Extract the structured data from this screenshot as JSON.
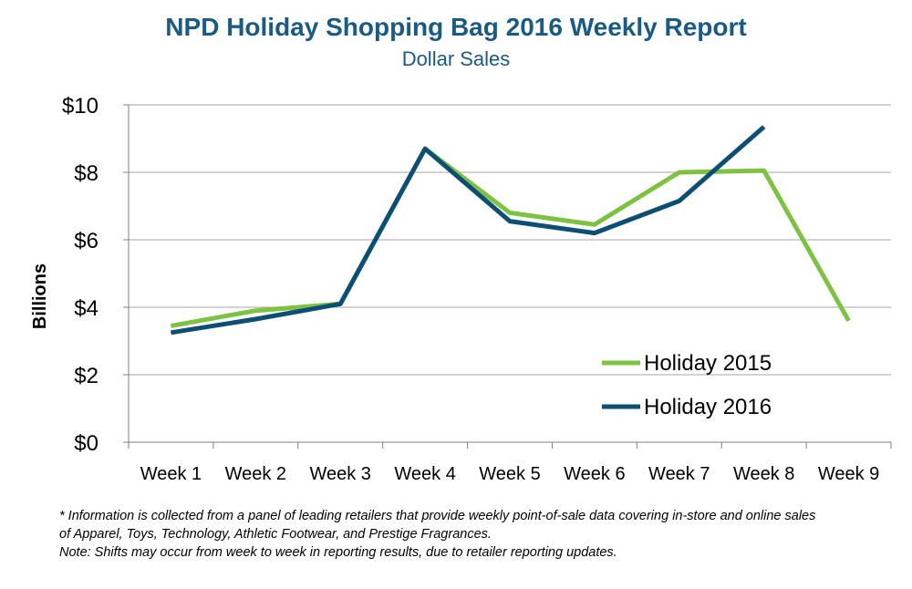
{
  "chart_data": {
    "type": "line",
    "title": "NPD Holiday Shopping Bag 2016 Weekly Report",
    "subtitle": "Dollar Sales",
    "ylabel": "Billions",
    "xlabel": "",
    "categories": [
      "Week 1",
      "Week 2",
      "Week 3",
      "Week 4",
      "Week 5",
      "Week 6",
      "Week 7",
      "Week 8",
      "Week 9"
    ],
    "ylim": [
      0,
      10
    ],
    "yticks": [
      0,
      2,
      4,
      6,
      8,
      10
    ],
    "ytick_labels": [
      "$0",
      "$2",
      "$4",
      "$6",
      "$8",
      "$10"
    ],
    "grid": true,
    "legend_position": "bottom-right",
    "series": [
      {
        "name": "Holiday 2015",
        "color": "#7dc242",
        "values": [
          3.45,
          3.9,
          4.1,
          8.7,
          6.8,
          6.45,
          8.0,
          8.05,
          3.6
        ]
      },
      {
        "name": "Holiday 2016",
        "color": "#0d4f74",
        "values": [
          3.25,
          3.65,
          4.1,
          8.7,
          6.55,
          6.2,
          7.15,
          9.35,
          null
        ]
      }
    ]
  },
  "footnotes": [
    "* Information is collected from a panel of leading retailers that provide weekly point-of-sale data covering in-store and online sales",
    "of Apparel, Toys, Technology, Athletic Footwear, and Prestige Fragrances.",
    "Note: Shifts may occur from week to week in reporting results, due to retailer reporting updates."
  ]
}
